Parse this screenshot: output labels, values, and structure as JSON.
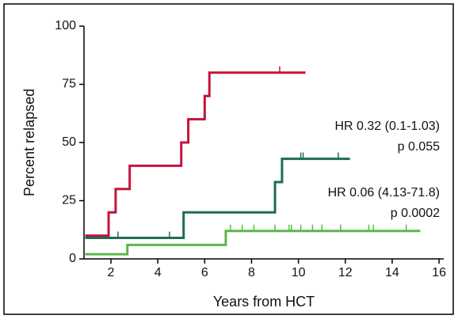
{
  "chart_data": {
    "type": "step",
    "xlabel": "Years from HCT",
    "ylabel": "Percent relapsed",
    "xlim": [
      0.85,
      16.2
    ],
    "xticks": [
      2,
      4,
      6,
      8,
      10,
      12,
      14,
      16
    ],
    "ylim": [
      0,
      100
    ],
    "yticks": [
      0,
      25,
      50,
      75,
      100
    ],
    "series": [
      {
        "color": "#c3143c",
        "x": [
          0.9,
          1.9,
          2.2,
          2.8,
          5.0,
          5.3,
          6.0,
          6.2,
          10.3
        ],
        "values": [
          10,
          20,
          30,
          40,
          50,
          60,
          70,
          80,
          80
        ],
        "censor_x": [
          9.2
        ],
        "censor_y": [
          80
        ]
      },
      {
        "color": "#1e6e50",
        "x": [
          0.9,
          5.1,
          9.0,
          9.3,
          12.2
        ],
        "values": [
          9,
          20,
          33,
          43,
          43
        ],
        "censor_x": [
          2.3,
          4.5,
          10.1,
          10.2,
          11.7
        ],
        "censor_y": [
          9,
          9,
          43,
          43,
          43
        ]
      },
      {
        "color": "#5ab84a",
        "x": [
          0.9,
          2.7,
          6.9,
          15.2
        ],
        "values": [
          2,
          6,
          12,
          12
        ],
        "censor_x": [
          7.1,
          7.6,
          8.1,
          9.0,
          9.6,
          9.7,
          10.1,
          10.6,
          11.0,
          11.8,
          13.0,
          13.2,
          14.6
        ],
        "censor_y": [
          12,
          12,
          12,
          12,
          12,
          12,
          12,
          12,
          12,
          12,
          12,
          12,
          12
        ]
      }
    ],
    "annotations": [
      "HR 0.32 (0.1-1.03)",
      "p 0.055",
      "HR 0.06 (4.13-71.8)",
      "p 0.0002"
    ]
  }
}
